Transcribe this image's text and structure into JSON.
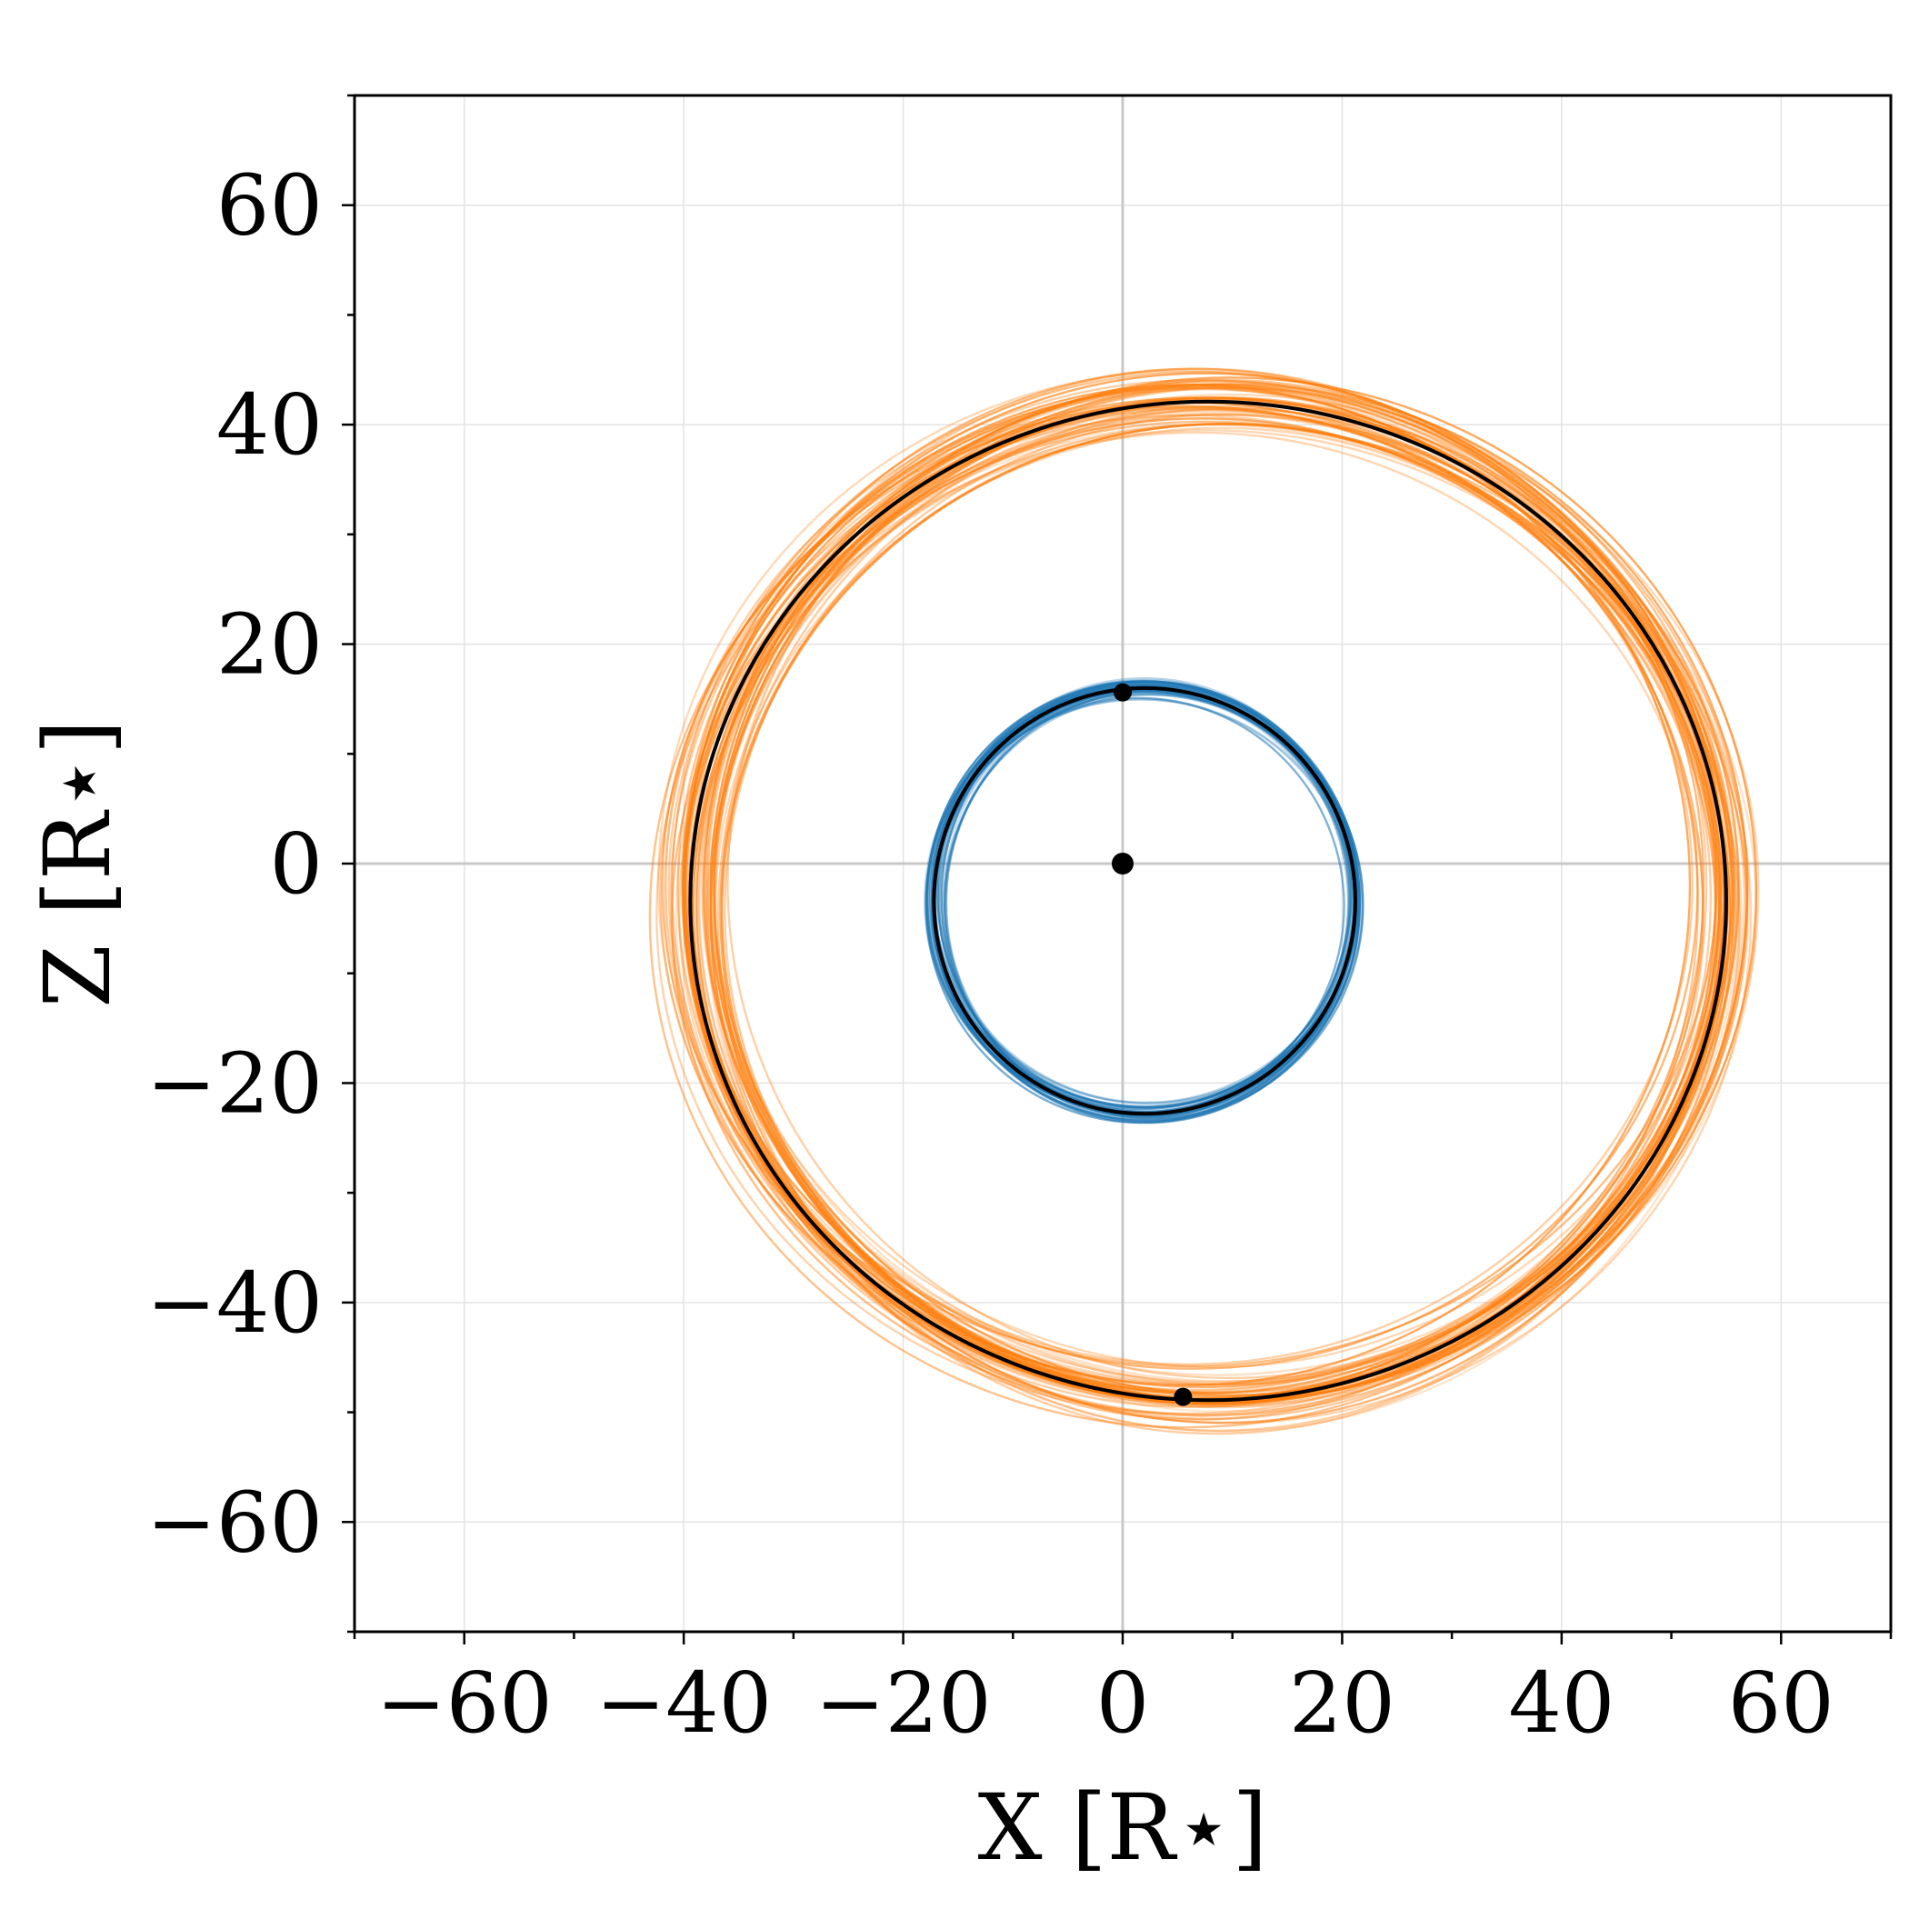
{
  "chart_data": {
    "type": "scatter",
    "title": "",
    "xlabel": "X [R⋆]",
    "ylabel": "Z [R⋆]",
    "xlim": [
      -70,
      70
    ],
    "ylim": [
      -70,
      70
    ],
    "xticks": [
      -60,
      -40,
      -20,
      0,
      20,
      40,
      60
    ],
    "yticks": [
      -60,
      -40,
      -20,
      0,
      20,
      40,
      60
    ],
    "xtick_labels": [
      "−60",
      "−40",
      "−20",
      "0",
      "20",
      "40",
      "60"
    ],
    "ytick_labels": [
      "−60",
      "−40",
      "−20",
      "0",
      "20",
      "40",
      "60"
    ],
    "grid": true,
    "colors": {
      "inner_orbit": "#1f77b4",
      "outer_orbit": "#ff7f0e",
      "best_fit": "#000000"
    },
    "series": [
      {
        "color": "#1f77b4",
        "center": [
          2.0,
          -3.4
        ],
        "radii": [
          19.2,
          19.4
        ],
        "samples": 40
      },
      {
        "color": "#ff7f0e",
        "center": [
          7.8,
          -3.4
        ],
        "radii": [
          47.2,
          45.5
        ],
        "samples": 60
      }
    ],
    "best_fit_orbits": [
      {
        "center": [
          2.0,
          -3.4
        ],
        "radii": [
          19.2,
          19.4
        ]
      },
      {
        "center": [
          7.8,
          -3.4
        ],
        "radii": [
          47.2,
          45.5
        ]
      }
    ],
    "points": [
      {
        "x": 0,
        "y": 0
      },
      {
        "x": 0,
        "y": 15.6
      },
      {
        "x": 5.5,
        "y": -48.6
      }
    ]
  }
}
